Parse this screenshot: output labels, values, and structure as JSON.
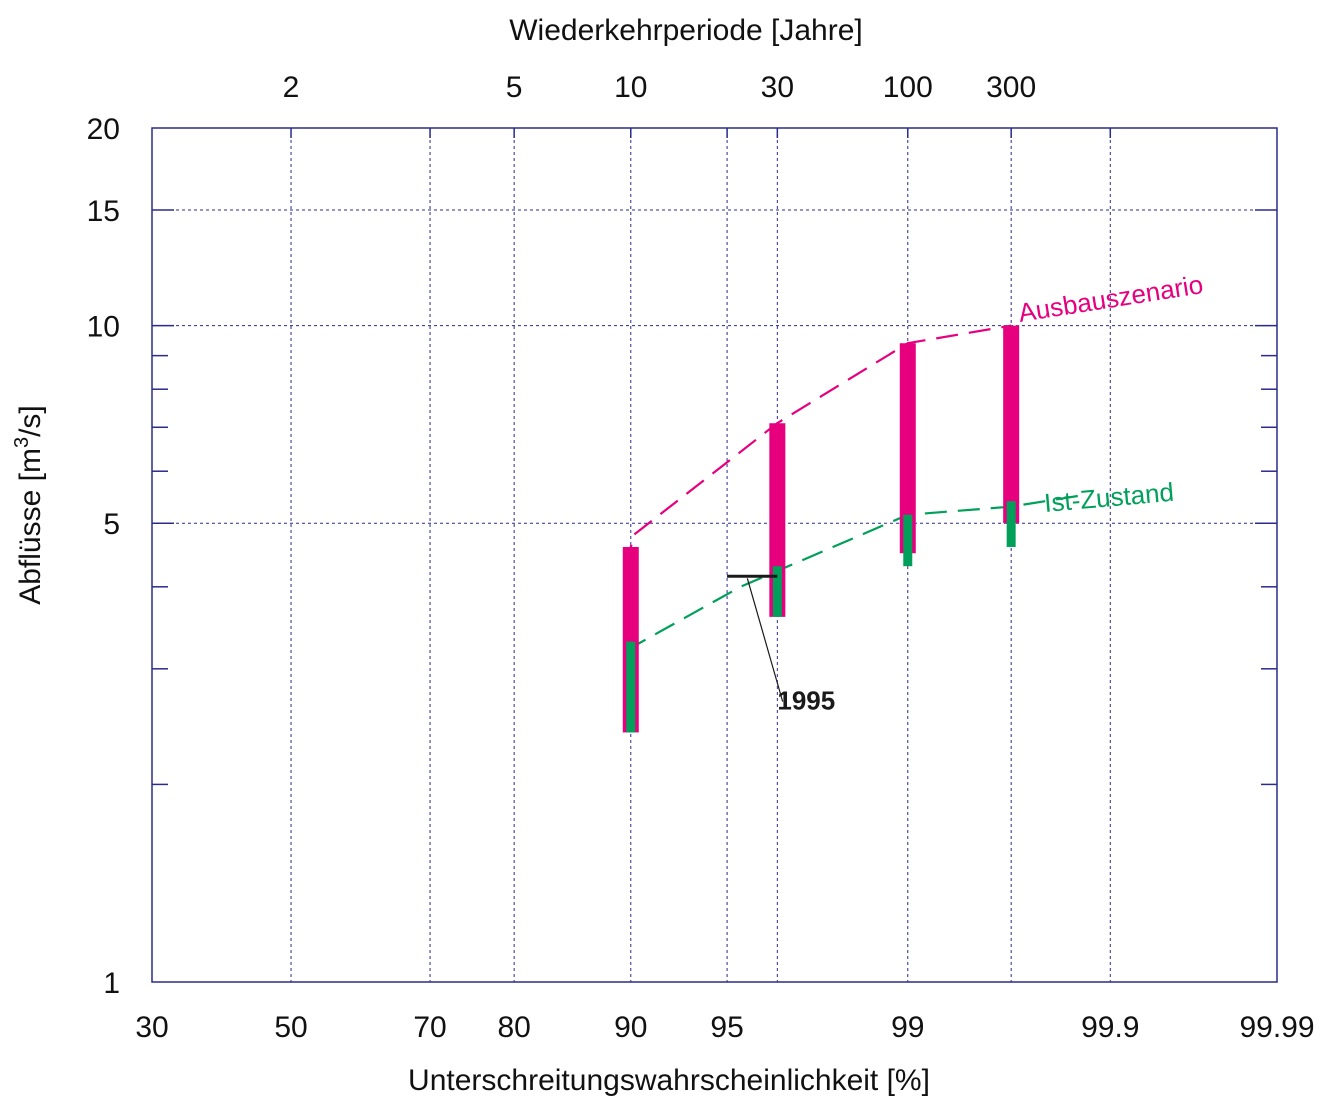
{
  "chart_data": {
    "type": "line",
    "top_axis": {
      "title": "Wiederkehrperiode [Jahre]",
      "ticks": [
        {
          "label": "2",
          "value": 50
        },
        {
          "label": "5",
          "value": 80
        },
        {
          "label": "10",
          "value": 90
        },
        {
          "label": "30",
          "value": 96.67
        },
        {
          "label": "100",
          "value": 99
        },
        {
          "label": "300",
          "value": 99.67
        }
      ]
    },
    "xlabel": "Unterschreitungswahrscheinlichkeit [%]",
    "x_scale": "normal-probability",
    "x_ticks": [
      {
        "label": "30",
        "value": 30
      },
      {
        "label": "50",
        "value": 50
      },
      {
        "label": "70",
        "value": 70
      },
      {
        "label": "80",
        "value": 80
      },
      {
        "label": "90",
        "value": 90
      },
      {
        "label": "95",
        "value": 95
      },
      {
        "label": "99",
        "value": 99
      },
      {
        "label": "99.9",
        "value": 99.9
      },
      {
        "label": "99.99",
        "value": 99.99
      }
    ],
    "xlim": [
      30,
      99.99
    ],
    "ylabel_main": "Abflüsse [m",
    "ylabel_sup": "3",
    "ylabel_end": "/s]",
    "y_scale": "log",
    "ylim": [
      1,
      20
    ],
    "y_ticks": [
      {
        "label": "1",
        "value": 1
      },
      {
        "label": "5",
        "value": 5
      },
      {
        "label": "10",
        "value": 10
      },
      {
        "label": "15",
        "value": 15
      },
      {
        "label": "20",
        "value": 20
      }
    ],
    "y_minor_ticks": [
      2,
      3,
      4,
      6,
      7,
      8,
      9
    ],
    "grid": true,
    "series": [
      {
        "name": "Ausbauszenario",
        "color": "#e6007e",
        "style": "dashed",
        "line": [
          [
            89.7,
            4.3
          ],
          [
            90.2,
            4.8
          ],
          [
            96.67,
            7.1
          ],
          [
            99,
            9.4
          ],
          [
            99.67,
            10.0
          ]
        ],
        "bars": [
          {
            "x": 90,
            "low": 2.4,
            "high": 4.6
          },
          {
            "x": 96.67,
            "low": 3.6,
            "high": 7.1
          },
          {
            "x": 99,
            "low": 4.5,
            "high": 9.4
          },
          {
            "x": 99.67,
            "low": 5.0,
            "high": 10.0
          }
        ]
      },
      {
        "name": "Ist-Zustand",
        "color": "#00a05a",
        "style": "dashed",
        "line": [
          [
            89.7,
            3.2
          ],
          [
            95.5,
            4.0
          ],
          [
            99,
            5.15
          ],
          [
            99.67,
            5.3
          ],
          [
            99.85,
            5.5
          ]
        ],
        "bars": [
          {
            "x": 90,
            "low": 2.4,
            "high": 3.3
          },
          {
            "x": 96.67,
            "low": 3.6,
            "high": 4.3
          },
          {
            "x": 99,
            "low": 4.3,
            "high": 5.15
          },
          {
            "x": 99.67,
            "low": 4.6,
            "high": 5.4
          }
        ]
      }
    ],
    "annotation": {
      "label": "1995",
      "segment": {
        "x_from": 95,
        "x_to": 96.67,
        "y": 4.15
      },
      "leader_to": {
        "x": 96.3,
        "y": 2.75
      },
      "text_at": {
        "x": 96.5,
        "y": 2.6
      },
      "color": "#1a1a1a"
    }
  }
}
